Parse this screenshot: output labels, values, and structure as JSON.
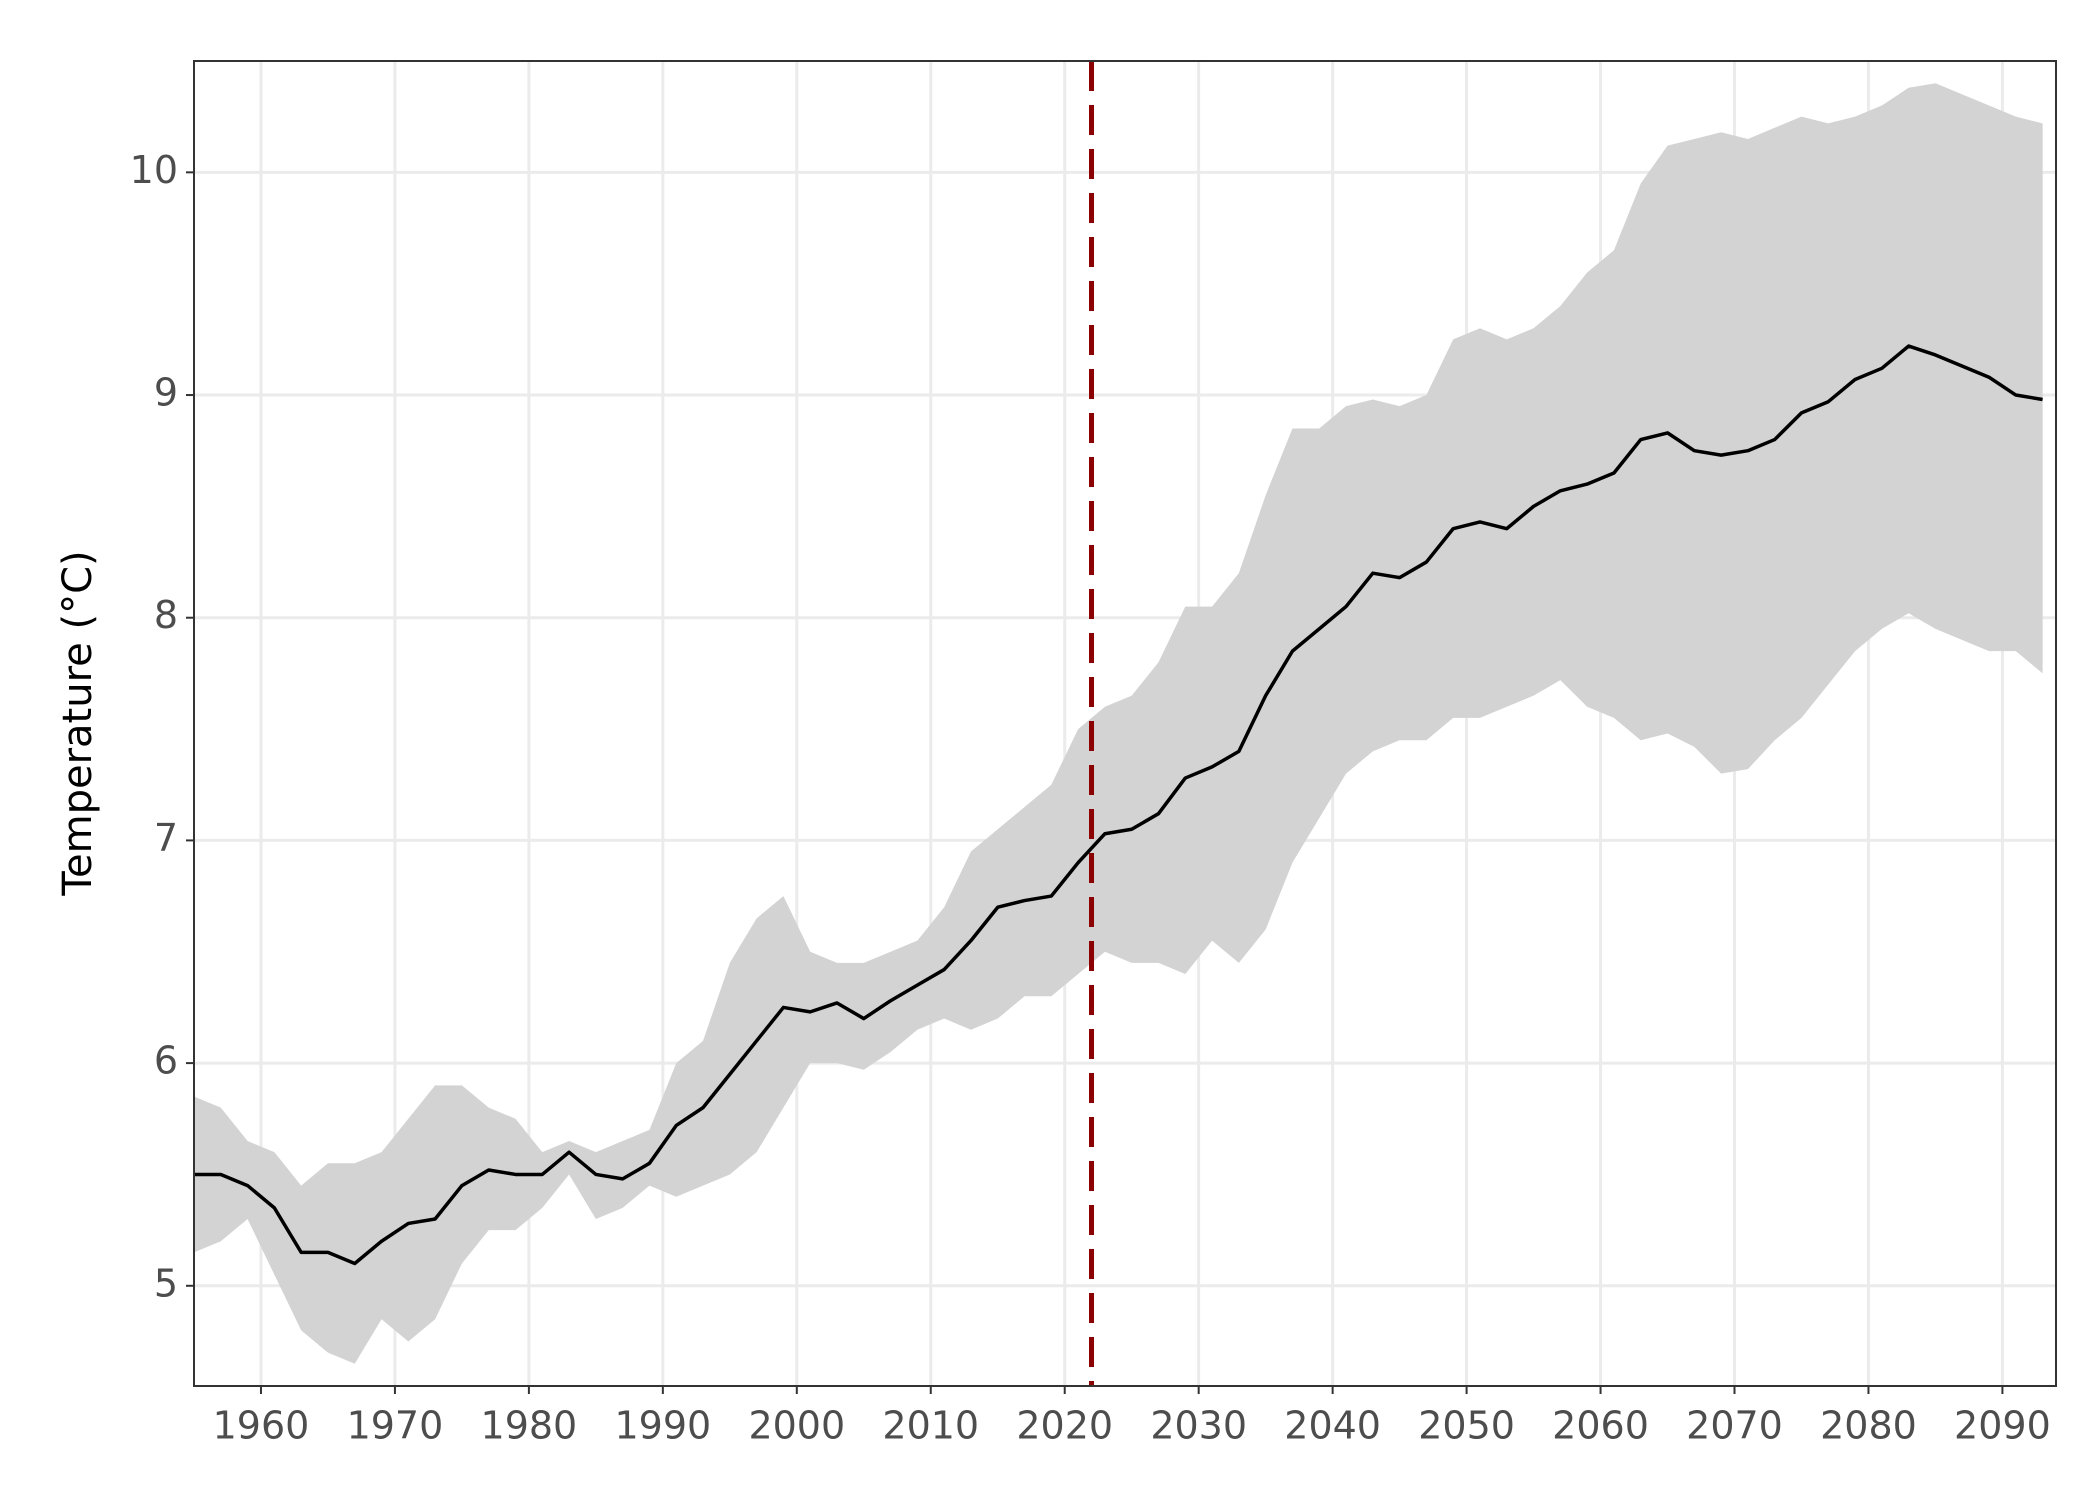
{
  "chart_data": {
    "type": "line",
    "y_label": "Temperature (°C)",
    "x": [
      1955,
      1957,
      1959,
      1961,
      1963,
      1965,
      1967,
      1969,
      1971,
      1973,
      1975,
      1977,
      1979,
      1981,
      1983,
      1985,
      1987,
      1989,
      1991,
      1993,
      1995,
      1997,
      1999,
      2001,
      2003,
      2005,
      2007,
      2009,
      2011,
      2013,
      2015,
      2017,
      2019,
      2021,
      2023,
      2025,
      2027,
      2029,
      2031,
      2033,
      2035,
      2037,
      2039,
      2041,
      2043,
      2045,
      2047,
      2049,
      2051,
      2053,
      2055,
      2057,
      2059,
      2061,
      2063,
      2065,
      2067,
      2069,
      2071,
      2073,
      2075,
      2077,
      2079,
      2081,
      2083,
      2085,
      2087,
      2089,
      2091,
      2093
    ],
    "values": [
      5.5,
      5.5,
      5.45,
      5.35,
      5.15,
      5.15,
      5.1,
      5.2,
      5.28,
      5.3,
      5.45,
      5.52,
      5.5,
      5.5,
      5.6,
      5.5,
      5.48,
      5.55,
      5.72,
      5.8,
      5.95,
      6.1,
      6.25,
      6.23,
      6.27,
      6.2,
      6.28,
      6.35,
      6.42,
      6.55,
      6.7,
      6.73,
      6.75,
      6.9,
      7.03,
      7.05,
      7.12,
      7.28,
      7.33,
      7.4,
      7.65,
      7.85,
      7.95,
      8.05,
      8.2,
      8.18,
      8.25,
      8.4,
      8.43,
      8.4,
      8.5,
      8.57,
      8.6,
      8.65,
      8.8,
      8.83,
      8.75,
      8.73,
      8.75,
      8.8,
      8.92,
      8.97,
      9.07,
      9.12,
      9.22,
      9.18,
      9.13,
      9.08,
      9.0,
      8.98
    ],
    "lower": [
      5.15,
      5.2,
      5.3,
      5.05,
      4.8,
      4.7,
      4.65,
      4.85,
      4.75,
      4.85,
      5.1,
      5.25,
      5.25,
      5.35,
      5.5,
      5.3,
      5.35,
      5.45,
      5.4,
      5.45,
      5.5,
      5.6,
      5.8,
      6.0,
      6.0,
      5.97,
      6.05,
      6.15,
      6.2,
      6.15,
      6.2,
      6.3,
      6.3,
      6.4,
      6.5,
      6.45,
      6.45,
      6.4,
      6.55,
      6.45,
      6.6,
      6.9,
      7.1,
      7.3,
      7.4,
      7.45,
      7.45,
      7.55,
      7.55,
      7.6,
      7.65,
      7.72,
      7.6,
      7.55,
      7.45,
      7.48,
      7.42,
      7.3,
      7.32,
      7.45,
      7.55,
      7.7,
      7.85,
      7.95,
      8.02,
      7.95,
      7.9,
      7.85,
      7.85,
      7.75
    ],
    "upper": [
      5.85,
      5.8,
      5.65,
      5.6,
      5.45,
      5.55,
      5.55,
      5.6,
      5.75,
      5.9,
      5.9,
      5.8,
      5.75,
      5.6,
      5.65,
      5.6,
      5.65,
      5.7,
      6.0,
      6.1,
      6.45,
      6.65,
      6.75,
      6.5,
      6.45,
      6.45,
      6.5,
      6.55,
      6.7,
      6.95,
      7.05,
      7.15,
      7.25,
      7.5,
      7.6,
      7.65,
      7.8,
      8.05,
      8.05,
      8.2,
      8.55,
      8.85,
      8.85,
      8.95,
      8.98,
      8.95,
      9.0,
      9.25,
      9.3,
      9.25,
      9.3,
      9.4,
      9.55,
      9.65,
      9.95,
      10.12,
      10.15,
      10.18,
      10.15,
      10.2,
      10.25,
      10.22,
      10.25,
      10.3,
      10.38,
      10.4,
      10.35,
      10.3,
      10.25,
      10.22
    ],
    "color": "#000000",
    "band_color": "#d3d3d3",
    "vline": 2022,
    "vline_color": "#8b0000",
    "xlim": [
      1955,
      2094
    ],
    "ylim": [
      4.55,
      10.5
    ],
    "xticks": [
      1960,
      1970,
      1980,
      1990,
      2000,
      2010,
      2020,
      2030,
      2040,
      2050,
      2060,
      2070,
      2080,
      2090
    ],
    "yticks": [
      5,
      6,
      7,
      8,
      9,
      10
    ],
    "grid": true
  }
}
